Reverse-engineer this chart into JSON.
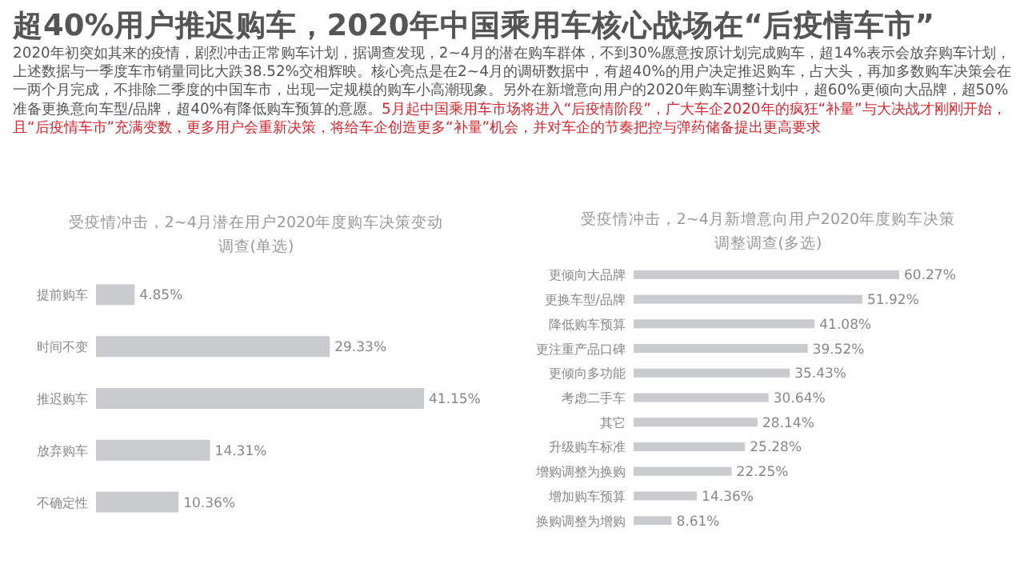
{
  "chart_data": [
    {
      "type": "other",
      "title": "超40%用户推迟购车，2020年中国乘用车核心战场在“后疫情车市”",
      "annotations": [
        "2020年初突如其来的疫情，剧烈冲击正常购车计划，据调查发现，2~4月的潜在购车群体，不到30%愿意按原计划完成购车，超14%表示会放弃购车计划，上述数据与一季度车市销量同比大跌38.52%交相辉映。核心亮点是在2~4月的调研数据中，有超40%的用户决定推迟购车，占大头，再加多数购车决策会在一两个月完成，不排除二季度的中国车市，出现一定规模的购车小高潮现象。另外在新增意向用户的2020年购车调整计划中，超60%更倾向大品牌，超50%准备更换意向车型/品牌，超40%有降低购车预算的意愿。",
        "5月起中国乘用车市场将进入“后疫情阶段”，广大车企2020年的疯狂“补量”与大决战才刚刚开始，且“后疫情车市”充满变数，更多用户会重新决策，将给车企创造更多“补量”机会，并对车企的节奏把控与弹药储备提出更高要求"
      ]
    },
    {
      "type": "bar",
      "orientation": "horizontal",
      "title": "受疫情冲击，2~4月潜在用户2020年度购车决策变动调查(单选)",
      "categories": [
        "提前购车",
        "时间不变",
        "推迟购车",
        "放弃购车",
        "不确定性"
      ],
      "values": [
        4.85,
        29.33,
        41.15,
        14.31,
        10.36
      ],
      "color": "#c9cbce",
      "value_labels": [
        "4.85%",
        "29.33%",
        "41.15%",
        "14.31%",
        "10.36%"
      ]
    },
    {
      "type": "bar",
      "orientation": "horizontal",
      "title": "受疫情冲击，2~4月新增意向用户2020年度购车决策调整调查(多选)",
      "categories": [
        "更倾向大品牌",
        "更换车型/品牌",
        "降低购车预算",
        "更注重产品口碑",
        "更倾向多功能",
        "考虑二手车",
        "其它",
        "升级购车标准",
        "增购调整为换购",
        "增加购车预算",
        "换购调整为增购"
      ],
      "values": [
        60.27,
        51.92,
        41.08,
        39.52,
        35.43,
        30.64,
        28.14,
        25.28,
        22.25,
        14.36,
        8.61
      ],
      "color": "#c9cbce",
      "value_labels": [
        "60.27%",
        "51.92%",
        "41.08%",
        "39.52%",
        "35.43%",
        "30.64%",
        "28.14%",
        "25.28%",
        "22.25%",
        "14.36%",
        "8.61%"
      ]
    }
  ]
}
